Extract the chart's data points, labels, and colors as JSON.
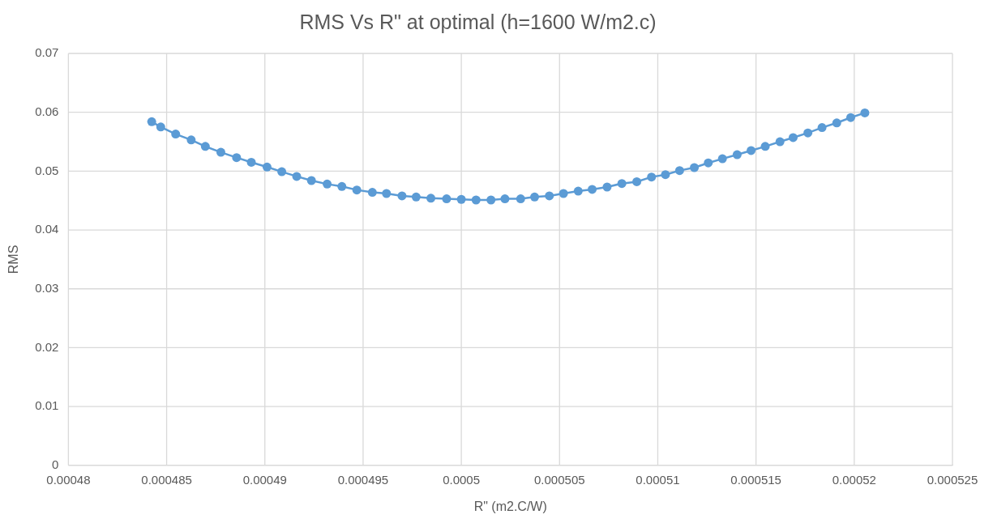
{
  "chart_data": {
    "type": "line",
    "title": "RMS Vs R\" at optimal (h=1600 W/m2.c)",
    "xlabel": "R\" (m2.C/W)",
    "ylabel": "RMS",
    "x": [
      0.00048424,
      0.0004847,
      0.00048546,
      0.00048625,
      0.00048697,
      0.00048776,
      0.00048856,
      0.00048931,
      0.00049011,
      0.00049086,
      0.00049162,
      0.00049237,
      0.00049317,
      0.00049392,
      0.00049468,
      0.00049547,
      0.00049619,
      0.00049698,
      0.0004977,
      0.00049845,
      0.00049925,
      0.0005,
      0.00050075,
      0.00050151,
      0.00050222,
      0.00050302,
      0.00050373,
      0.00050448,
      0.0005052,
      0.00050595,
      0.00050666,
      0.00050742,
      0.00050817,
      0.00050893,
      0.00050968,
      0.00051039,
      0.00051111,
      0.00051186,
      0.00051257,
      0.00051329,
      0.00051404,
      0.00051475,
      0.00051547,
      0.00051622,
      0.00051689,
      0.00051764,
      0.00051836,
      0.00051911,
      0.00051982,
      0.00052054
    ],
    "series": [
      {
        "color": "#5b9bd5",
        "values": [
          0.0584,
          0.0575,
          0.0563,
          0.0553,
          0.0542,
          0.0532,
          0.0523,
          0.0515,
          0.0507,
          0.0499,
          0.0491,
          0.0484,
          0.0478,
          0.0474,
          0.0468,
          0.0464,
          0.0462,
          0.0458,
          0.0456,
          0.0454,
          0.0453,
          0.0452,
          0.0451,
          0.0451,
          0.0453,
          0.0453,
          0.0456,
          0.0458,
          0.0462,
          0.0466,
          0.0469,
          0.0473,
          0.0479,
          0.0482,
          0.049,
          0.0494,
          0.0501,
          0.0506,
          0.0514,
          0.0521,
          0.0528,
          0.0535,
          0.0542,
          0.055,
          0.0557,
          0.0565,
          0.0574,
          0.0582,
          0.0591,
          0.0599
        ]
      }
    ],
    "xlim": [
      0.00048,
      0.000525
    ],
    "xticks": [
      0.00048,
      0.000485,
      0.00049,
      0.000495,
      0.0005,
      0.000505,
      0.00051,
      0.000515,
      0.00052,
      0.000525
    ],
    "ylim": [
      0,
      0.07
    ],
    "yticks": [
      0,
      0.01,
      0.02,
      0.03,
      0.04,
      0.05,
      0.06,
      0.07
    ],
    "grid": true,
    "marker": "circle",
    "line_style": "solid"
  }
}
